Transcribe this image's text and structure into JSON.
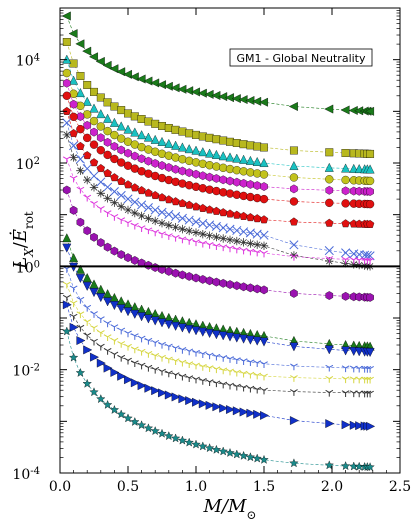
{
  "chart_data": {
    "type": "scatter",
    "title": "",
    "annotation": "GM1 - Global Neutrality",
    "xlabel": "M/M_⊙",
    "ylabel": "L_X/Ė_rot",
    "xlim": [
      0,
      2.5
    ],
    "ylim_log10": [
      -4,
      5
    ],
    "log_y": true,
    "xticks": [
      "0.0",
      "0.5",
      "1.0",
      "1.5",
      "2.0",
      "2.5"
    ],
    "yticks": [
      {
        "exp": 4,
        "label": "10",
        "sup": "4"
      },
      {
        "exp": 2,
        "label": "10",
        "sup": "2"
      },
      {
        "exp": 0,
        "label": "10",
        "sup": "0"
      },
      {
        "exp": -2,
        "label": "10",
        "sup": "-2"
      },
      {
        "exp": -4,
        "label": "10",
        "sup": "-4"
      }
    ],
    "reference_line_y": 1.0,
    "grid": false,
    "x_samples": [
      0.05,
      0.1,
      0.15,
      0.2,
      0.25,
      0.3,
      0.35,
      0.4,
      0.45,
      0.5,
      0.55,
      0.6,
      0.65,
      0.7,
      0.75,
      0.8,
      0.85,
      0.9,
      0.95,
      1.0,
      1.05,
      1.1,
      1.15,
      1.2,
      1.25,
      1.3,
      1.35,
      1.4,
      1.45,
      1.5
    ],
    "x_tail": [
      1.72,
      1.98,
      2.1,
      2.16,
      2.2,
      2.24,
      2.26,
      2.28
    ],
    "series": [
      {
        "marker": "tri-left",
        "color": "#1a7a1a",
        "y_at_0_05": 70000,
        "y_at_1_5": 1500,
        "y_end": 1000
      },
      {
        "marker": "square",
        "color": "#b8b81e",
        "y_at_0_05": 22000,
        "y_at_1_5": 200,
        "y_end": 150
      },
      {
        "marker": "tri-up",
        "color": "#19c1c1",
        "y_at_0_05": 10000,
        "y_at_1_5": 100,
        "y_end": 75
      },
      {
        "marker": "circle",
        "color": "#c2c21b",
        "y_at_0_05": 5500,
        "y_at_1_5": 60,
        "y_end": 45
      },
      {
        "marker": "hexagon",
        "color": "#cc22cc",
        "y_at_0_05": 3500,
        "y_at_1_5": 35,
        "y_end": 28
      },
      {
        "marker": "circle",
        "color": "#e01010",
        "y_at_0_05": 2000,
        "y_at_1_5": 20,
        "y_end": 16
      },
      {
        "marker": "pentagon",
        "color": "#e01010",
        "y_at_0_05": 1000,
        "y_at_1_5": 8,
        "y_end": 6.5
      },
      {
        "marker": "x",
        "color": "#4a6ad8",
        "y_at_0_05": 600,
        "y_at_1_5": 4,
        "y_end": 1.6
      },
      {
        "marker": "star-thin",
        "color": "#333333",
        "y_at_0_05": 350,
        "y_at_1_5": 2.5,
        "y_end": 1.0
      },
      {
        "marker": "tri-down-thin",
        "color": "#dd33dd",
        "y_at_0_05": 120,
        "y_at_1_5": 1.8,
        "y_end": 1.3
      },
      {
        "marker": "hexagon",
        "color": "#9a12b0",
        "y_at_0_05": 30,
        "y_at_1_5": 0.35,
        "y_end": 0.25
      },
      {
        "marker": "tri-up",
        "color": "#1a7a1a",
        "y_at_0_05": 3.5,
        "y_at_1_5": 0.045,
        "y_end": 0.028
      },
      {
        "marker": "tri-down",
        "color": "#1030c8",
        "y_at_0_05": 2.3,
        "y_at_1_5": 0.035,
        "y_end": 0.022
      },
      {
        "marker": "tri-down-thin",
        "color": "#4a6ad8",
        "y_at_0_05": 0.9,
        "y_at_1_5": 0.013,
        "y_end": 0.0105
      },
      {
        "marker": "tri-down-thin",
        "color": "#d6d640",
        "y_at_0_05": 0.45,
        "y_at_1_5": 0.0075,
        "y_end": 0.0065
      },
      {
        "marker": "tri-down-thin",
        "color": "#333333",
        "y_at_0_05": 0.25,
        "y_at_1_5": 0.004,
        "y_end": 0.0035
      },
      {
        "marker": "tri-right",
        "color": "#1030c8",
        "y_at_0_05": 0.18,
        "y_at_1_5": 0.0013,
        "y_end": 0.0008
      },
      {
        "marker": "star",
        "color": "#1a8a8a",
        "y_at_0_05": 0.055,
        "y_at_1_5": 0.00018,
        "y_end": 0.00013
      }
    ]
  }
}
